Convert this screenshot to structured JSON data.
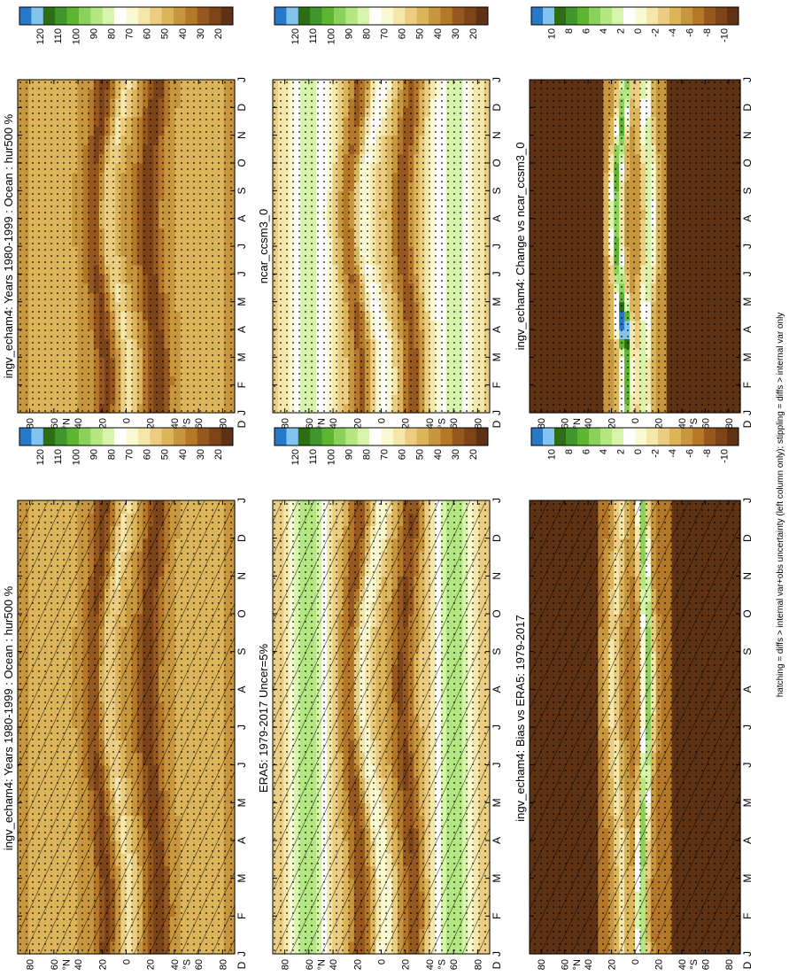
{
  "figure": {
    "footnote": "hatching = diffs > internal var+obs uncertainty (left column only); stippling = diffs > internal var only"
  },
  "colors": {
    "abs_scale": [
      "#2878c8",
      "#82c3f0",
      "#2d6e14",
      "#41962d",
      "#5fb432",
      "#8cd25a",
      "#b4e682",
      "#d7f5aa",
      "#ffffff",
      "#fafad2",
      "#f5e6aa",
      "#ebcd82",
      "#dcb45a",
      "#c8963c",
      "#b47828",
      "#96581e",
      "#7d4419",
      "#5f3214"
    ],
    "diff_scale": [
      "#2878c8",
      "#82c3f0",
      "#2d6e14",
      "#41962d",
      "#5fb432",
      "#8cd25a",
      "#b4e682",
      "#d7f5aa",
      "#ffffff",
      "#fafad2",
      "#f5e6aa",
      "#ebcd82",
      "#dcb45a",
      "#c8963c",
      "#b47828",
      "#96581e",
      "#7d4419",
      "#5f3214"
    ]
  },
  "chart_data": [
    {
      "panel": "left-top",
      "type": "heatmap",
      "title": "ingv_echam4: Years 1980-1999 : Ocean : hur500 %",
      "months": [
        "J",
        "F",
        "M",
        "A",
        "M",
        "J",
        "J",
        "A",
        "S",
        "O",
        "N",
        "D",
        "J"
      ],
      "lat_ticks": [
        "80",
        "60",
        "40",
        "20",
        "0",
        "20",
        "40",
        "60",
        "80"
      ],
      "lat_start": "D",
      "lat_hemispheres": [
        "°N",
        "°S"
      ],
      "colorbar_labels": [
        "120",
        "110",
        "100",
        "90",
        "80",
        "70",
        "60",
        "50",
        "40",
        "30",
        "20"
      ],
      "field": "abs_ocean_model",
      "hatching": true,
      "stippling": true
    },
    {
      "panel": "right-top",
      "type": "heatmap",
      "title": "ingv_echam4: Years 1980-1999 : Ocean : hur500 %",
      "months": [
        "J",
        "F",
        "M",
        "A",
        "M",
        "J",
        "J",
        "A",
        "S",
        "O",
        "N",
        "D",
        "J"
      ],
      "lat_ticks": [
        "80",
        "60",
        "40",
        "20",
        "0",
        "20",
        "40",
        "60",
        "80"
      ],
      "lat_start": "D",
      "lat_hemispheres": [
        "°N",
        "°S"
      ],
      "colorbar_labels": [
        "120",
        "110",
        "100",
        "90",
        "80",
        "70",
        "60",
        "50",
        "40",
        "30",
        "20"
      ],
      "field": "abs_ocean_model",
      "hatching": false,
      "stippling": true
    },
    {
      "panel": "left-middle",
      "type": "heatmap",
      "title": "ERA5: 1979-2017 Uncer=5%",
      "months": [
        "J",
        "F",
        "M",
        "A",
        "M",
        "J",
        "J",
        "A",
        "S",
        "O",
        "N",
        "D",
        "J"
      ],
      "lat_ticks": [
        "80",
        "60",
        "40",
        "20",
        "0",
        "20",
        "40",
        "60",
        "80"
      ],
      "lat_start": "D",
      "lat_hemispheres": [
        "°N",
        "°S"
      ],
      "colorbar_labels": [
        "120",
        "110",
        "100",
        "90",
        "80",
        "70",
        "60",
        "50",
        "40",
        "30",
        "20"
      ],
      "field": "abs_obs",
      "hatching": true,
      "stippling": true
    },
    {
      "panel": "right-middle",
      "type": "heatmap",
      "title": "ncar_ccsm3_0",
      "months": [
        "J",
        "F",
        "M",
        "A",
        "M",
        "J",
        "J",
        "A",
        "S",
        "O",
        "N",
        "D",
        "J"
      ],
      "lat_ticks": [
        "80",
        "60",
        "40",
        "20",
        "0",
        "20",
        "40",
        "60",
        "80"
      ],
      "lat_start": "D",
      "lat_hemispheres": [
        "°N",
        "°S"
      ],
      "colorbar_labels": [
        "120",
        "110",
        "100",
        "90",
        "80",
        "70",
        "60",
        "50",
        "40",
        "30",
        "20"
      ],
      "field": "abs_other_model",
      "hatching": false,
      "stippling": true
    },
    {
      "panel": "left-bottom",
      "type": "heatmap",
      "title": "ingv_echam4: Bias vs ERA5: 1979-2017",
      "months": [
        "J",
        "F",
        "M",
        "A",
        "M",
        "J",
        "J",
        "A",
        "S",
        "O",
        "N",
        "D",
        "J"
      ],
      "lat_ticks": [
        "80",
        "60",
        "40",
        "20",
        "0",
        "20",
        "40",
        "60",
        "80"
      ],
      "lat_start": "D",
      "lat_hemispheres": [
        "°N",
        "°S"
      ],
      "colorbar_labels": [
        "10",
        "8",
        "6",
        "4",
        "2",
        "0",
        "-2",
        "-4",
        "-6",
        "-8",
        "-10"
      ],
      "field": "diff_bias",
      "hatching": true,
      "stippling": true
    },
    {
      "panel": "right-bottom",
      "type": "heatmap",
      "title": "ingv_echam4: Change vs ncar_ccsm3_0",
      "months": [
        "J",
        "F",
        "M",
        "A",
        "M",
        "J",
        "J",
        "A",
        "S",
        "O",
        "N",
        "D",
        "J"
      ],
      "lat_ticks": [
        "80",
        "60",
        "40",
        "20",
        "0",
        "20",
        "40",
        "60",
        "80"
      ],
      "lat_start": "D",
      "lat_hemispheres": [
        "°N",
        "°S"
      ],
      "colorbar_labels": [
        "10",
        "8",
        "6",
        "4",
        "2",
        "0",
        "-2",
        "-4",
        "-6",
        "-8",
        "-10"
      ],
      "field": "diff_change",
      "hatching": false,
      "stippling": true
    }
  ]
}
